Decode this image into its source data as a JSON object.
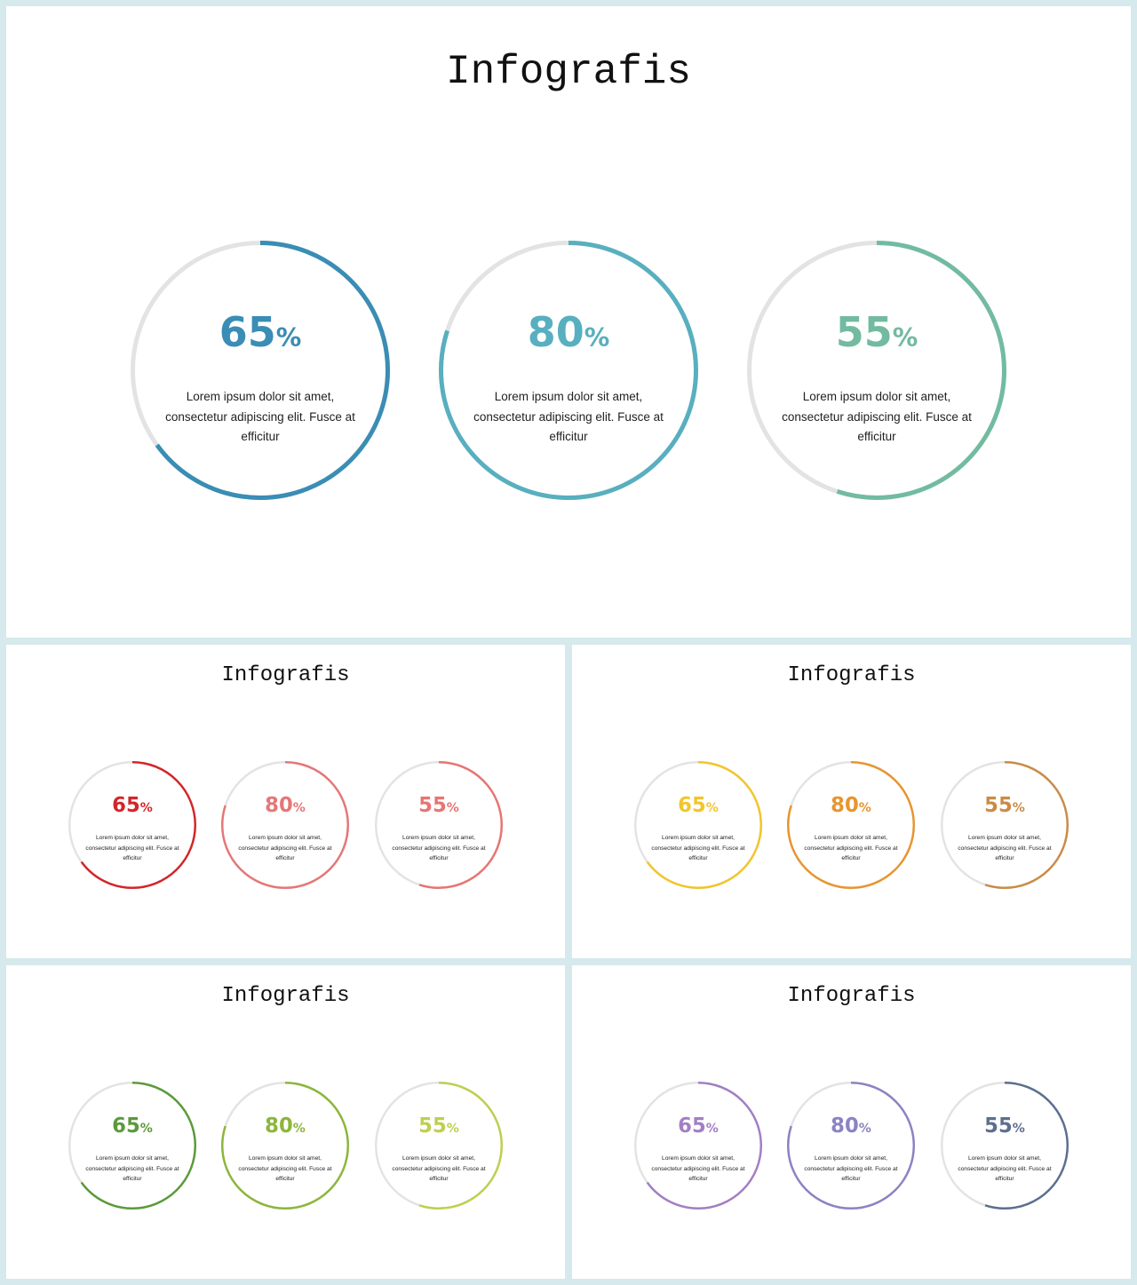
{
  "slides": [
    {
      "id": "main",
      "title": "Infografis",
      "gauges": [
        {
          "value": 65,
          "unit": "%",
          "color": "#3a8db4",
          "lines": [
            "Lorem ipsum dolor sit amet,",
            "consectetur adipiscing elit. Fusce at",
            "efficitur"
          ]
        },
        {
          "value": 80,
          "unit": "%",
          "color": "#58afbf",
          "lines": [
            "Lorem ipsum dolor sit amet,",
            "consectetur adipiscing elit. Fusce at",
            "efficitur"
          ]
        },
        {
          "value": 55,
          "unit": "%",
          "color": "#72bba0",
          "lines": [
            "Lorem ipsum dolor sit amet,",
            "consectetur adipiscing elit. Fusce at",
            "efficitur"
          ]
        }
      ]
    },
    {
      "id": "red",
      "title": "Infografis",
      "gauges": [
        {
          "value": 65,
          "unit": "%",
          "color": "#d3262a",
          "lines": [
            "Lorem ipsum dolor sit amet,",
            "consectetur adipiscing elit. Fusce at",
            "efficitur"
          ]
        },
        {
          "value": 80,
          "unit": "%",
          "color": "#e57777",
          "lines": [
            "Lorem ipsum dolor sit amet,",
            "consectetur adipiscing elit. Fusce at",
            "efficitur"
          ]
        },
        {
          "value": 55,
          "unit": "%",
          "color": "#e87472",
          "lines": [
            "Lorem ipsum dolor sit amet,",
            "consectetur adipiscing elit. Fusce at",
            "efficitur"
          ]
        }
      ]
    },
    {
      "id": "orange",
      "title": "Infografis",
      "gauges": [
        {
          "value": 65,
          "unit": "%",
          "color": "#f2c52b",
          "lines": [
            "Lorem ipsum dolor sit amet,",
            "consectetur adipiscing elit. Fusce at",
            "efficitur"
          ]
        },
        {
          "value": 80,
          "unit": "%",
          "color": "#e8952f",
          "lines": [
            "Lorem ipsum dolor sit amet,",
            "consectetur adipiscing elit. Fusce at",
            "efficitur"
          ]
        },
        {
          "value": 55,
          "unit": "%",
          "color": "#c98c46",
          "lines": [
            "Lorem ipsum dolor sit amet,",
            "consectetur adipiscing elit. Fusce at",
            "efficitur"
          ]
        }
      ]
    },
    {
      "id": "green",
      "title": "Infografis",
      "gauges": [
        {
          "value": 65,
          "unit": "%",
          "color": "#5b9a3a",
          "lines": [
            "Lorem ipsum dolor sit amet,",
            "consectetur adipiscing elit. Fusce at",
            "efficitur"
          ]
        },
        {
          "value": 80,
          "unit": "%",
          "color": "#8cb63a",
          "lines": [
            "Lorem ipsum dolor sit amet,",
            "consectetur adipiscing elit. Fusce at",
            "efficitur"
          ]
        },
        {
          "value": 55,
          "unit": "%",
          "color": "#bfcf4e",
          "lines": [
            "Lorem ipsum dolor sit amet,",
            "consectetur adipiscing elit. Fusce at",
            "efficitur"
          ]
        }
      ]
    },
    {
      "id": "purple",
      "title": "Infografis",
      "gauges": [
        {
          "value": 65,
          "unit": "%",
          "color": "#a27fc4",
          "lines": [
            "Lorem ipsum dolor sit amet,",
            "consectetur adipiscing elit. Fusce at",
            "efficitur"
          ]
        },
        {
          "value": 80,
          "unit": "%",
          "color": "#8a83c4",
          "lines": [
            "Lorem ipsum dolor sit amet,",
            "consectetur adipiscing elit. Fusce at",
            "efficitur"
          ]
        },
        {
          "value": 55,
          "unit": "%",
          "color": "#5c6f8f",
          "lines": [
            "Lorem ipsum dolor sit amet,",
            "consectetur adipiscing elit. Fusce at",
            "efficitur"
          ]
        }
      ]
    }
  ],
  "track_color": "#e3e3e3"
}
